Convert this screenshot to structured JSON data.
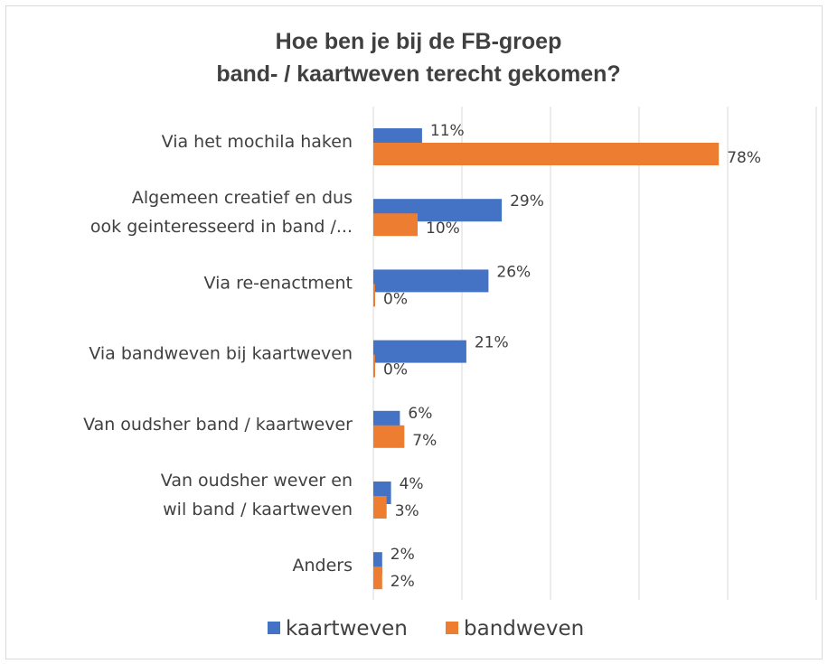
{
  "chart_data": {
    "type": "bar",
    "orientation": "horizontal",
    "title": [
      "Hoe ben je bij de FB-groep",
      "band- / kaartweven terecht gekomen?"
    ],
    "categories": [
      [
        "Via het mochila haken"
      ],
      [
        "Algemeen creatief en dus",
        "ook geinteresseerd in band /..."
      ],
      [
        "Via re-enactment"
      ],
      [
        "Via bandweven bij kaartweven"
      ],
      [
        "Van oudsher band / kaartwever"
      ],
      [
        "Van oudsher wever en",
        "wil band / kaartweven"
      ],
      [
        "Anders"
      ]
    ],
    "series": [
      {
        "name": "kaartweven",
        "color": "#4472C4",
        "values": [
          11,
          29,
          26,
          21,
          6,
          4,
          2
        ],
        "labels": [
          "11%",
          "29%",
          "26%",
          "21%",
          "6%",
          "4%",
          "2%"
        ]
      },
      {
        "name": "bandweven",
        "color": "#ED7D31",
        "values": [
          78,
          10,
          0,
          0,
          7,
          3,
          2
        ],
        "labels": [
          "78%",
          "10%",
          "0%",
          "0%",
          "7%",
          "3%",
          "2%"
        ]
      }
    ],
    "xlim": [
      0,
      100
    ],
    "value_unit": "%",
    "gridlines": true,
    "gridline_step": 20,
    "axis_tick_labels_visible": false,
    "legend": "bottom",
    "colors": {
      "text": "#404040",
      "grid": "#d9d9d9",
      "frame": "#d9d9d9"
    }
  }
}
